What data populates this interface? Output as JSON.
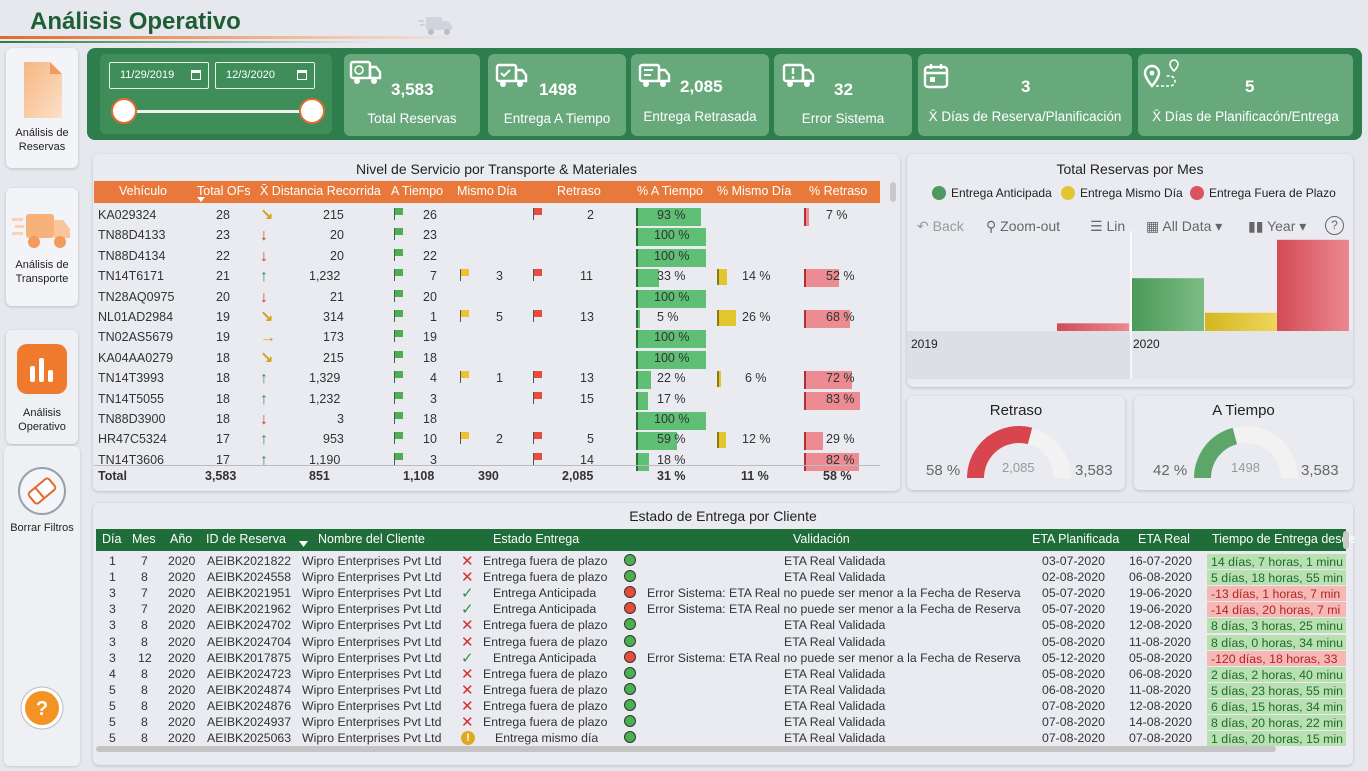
{
  "title": "Análisis Operativo",
  "nav": [
    {
      "label": "Análisis de Reservas"
    },
    {
      "label": "Análisis de Transporte"
    },
    {
      "label": "Análisis Operativo"
    },
    {
      "label": "Borrar Filtros"
    }
  ],
  "slicer": {
    "start": "11/29/2019",
    "end": "12/3/2020"
  },
  "kpis": {
    "total_reservas": {
      "value": "3,583",
      "label": "Total Reservas"
    },
    "a_tiempo": {
      "value": "1498",
      "label": "Entrega A Tiempo"
    },
    "retrasada": {
      "value": "2,085",
      "label": "Entrega Retrasada"
    },
    "error": {
      "value": "32",
      "label": "Error Sistema"
    },
    "dias_reserva": {
      "value": "3",
      "label": "X̄ Días de Reserva/Planificación"
    },
    "dias_entrega": {
      "value": "5",
      "label": "X̄ Días de Planificacón/Entrega"
    }
  },
  "service": {
    "title": "Nivel de Servicio por Transporte & Materiales",
    "headers": [
      "Vehículo",
      "Total OFs",
      "X̄ Distancia Recorrida",
      "A Tiempo",
      "Mismo Día",
      "Retraso",
      "% A Tiempo",
      "% Mismo Día",
      "% Retraso"
    ],
    "rows": [
      {
        "veh": "KA029324",
        "ofs": "28",
        "trend": "se",
        "dist": "215",
        "at": "26",
        "md": "",
        "re": "2",
        "pat": "93 %",
        "pat_v": 93,
        "pmd": "",
        "pmd_v": 0,
        "pre": "7 %",
        "pre_v": 7
      },
      {
        "veh": "TN88D4133",
        "ofs": "23",
        "trend": "down",
        "dist": "20",
        "at": "23",
        "md": "",
        "re": "",
        "pat": "100 %",
        "pat_v": 100,
        "pmd": "",
        "pmd_v": 0,
        "pre": "",
        "pre_v": 0
      },
      {
        "veh": "TN88D4134",
        "ofs": "22",
        "trend": "down",
        "dist": "20",
        "at": "22",
        "md": "",
        "re": "",
        "pat": "100 %",
        "pat_v": 100,
        "pmd": "",
        "pmd_v": 0,
        "pre": "",
        "pre_v": 0
      },
      {
        "veh": "TN14T6171",
        "ofs": "21",
        "trend": "up",
        "dist": "1,232",
        "at": "7",
        "md": "3",
        "re": "11",
        "pat": "33 %",
        "pat_v": 33,
        "pmd": "14 %",
        "pmd_v": 14,
        "pre": "52 %",
        "pre_v": 52
      },
      {
        "veh": "TN28AQ0975",
        "ofs": "20",
        "trend": "down",
        "dist": "21",
        "at": "20",
        "md": "",
        "re": "",
        "pat": "100 %",
        "pat_v": 100,
        "pmd": "",
        "pmd_v": 0,
        "pre": "",
        "pre_v": 0
      },
      {
        "veh": "NL01AD2984",
        "ofs": "19",
        "trend": "se",
        "dist": "314",
        "at": "1",
        "md": "5",
        "re": "13",
        "pat": "5 %",
        "pat_v": 5,
        "pmd": "26 %",
        "pmd_v": 26,
        "pre": "68 %",
        "pre_v": 68
      },
      {
        "veh": "TN02AS5679",
        "ofs": "19",
        "trend": "right",
        "dist": "173",
        "at": "19",
        "md": "",
        "re": "",
        "pat": "100 %",
        "pat_v": 100,
        "pmd": "",
        "pmd_v": 0,
        "pre": "",
        "pre_v": 0
      },
      {
        "veh": "KA04AA0279",
        "ofs": "18",
        "trend": "se",
        "dist": "215",
        "at": "18",
        "md": "",
        "re": "",
        "pat": "100 %",
        "pat_v": 100,
        "pmd": "",
        "pmd_v": 0,
        "pre": "",
        "pre_v": 0
      },
      {
        "veh": "TN14T3993",
        "ofs": "18",
        "trend": "up",
        "dist": "1,329",
        "at": "4",
        "md": "1",
        "re": "13",
        "pat": "22 %",
        "pat_v": 22,
        "pmd": "6 %",
        "pmd_v": 6,
        "pre": "72 %",
        "pre_v": 72
      },
      {
        "veh": "TN14T5055",
        "ofs": "18",
        "trend": "up",
        "dist": "1,232",
        "at": "3",
        "md": "",
        "re": "15",
        "pat": "17 %",
        "pat_v": 17,
        "pmd": "",
        "pmd_v": 0,
        "pre": "83 %",
        "pre_v": 83
      },
      {
        "veh": "TN88D3900",
        "ofs": "18",
        "trend": "down",
        "dist": "3",
        "at": "18",
        "md": "",
        "re": "",
        "pat": "100 %",
        "pat_v": 100,
        "pmd": "",
        "pmd_v": 0,
        "pre": "",
        "pre_v": 0
      },
      {
        "veh": "HR47C5324",
        "ofs": "17",
        "trend": "up",
        "dist": "953",
        "at": "10",
        "md": "2",
        "re": "5",
        "pat": "59 %",
        "pat_v": 59,
        "pmd": "12 %",
        "pmd_v": 12,
        "pre": "29 %",
        "pre_v": 29
      },
      {
        "veh": "TN14T3606",
        "ofs": "17",
        "trend": "up",
        "dist": "1,190",
        "at": "3",
        "md": "",
        "re": "14",
        "pat": "18 %",
        "pat_v": 18,
        "pmd": "",
        "pmd_v": 0,
        "pre": "82 %",
        "pre_v": 82
      }
    ],
    "total": {
      "label": "Total",
      "ofs": "3,583",
      "dist": "851",
      "at": "1,108",
      "md": "390",
      "re": "2,085",
      "pat": "31 %",
      "pmd": "11 %",
      "pre": "58 %"
    }
  },
  "monthly": {
    "title": "Total Reservas por Mes",
    "legend": [
      "Entrega Anticipada",
      "Entrega Mismo Día",
      "Entrega Fuera de Plazo"
    ],
    "toolbar": {
      "back": "Back",
      "zoom": "Zoom-out",
      "list": "Lin",
      "alldata": "All Data",
      "year": "Year",
      "help": "?"
    }
  },
  "chart_data": {
    "type": "bar",
    "categories": [
      "2019",
      "2020"
    ],
    "series": [
      {
        "name": "Entrega Anticipada",
        "values": [
          0,
          55
        ]
      },
      {
        "name": "Entrega Mismo Día",
        "values": [
          0,
          19
        ]
      },
      {
        "name": "Entrega Fuera de Plazo",
        "values": [
          8,
          95
        ]
      }
    ],
    "colors": [
      "#4e9a5e",
      "#e2c62f",
      "#d9545e"
    ]
  },
  "gauges": {
    "retraso": {
      "title": "Retraso",
      "pct": "58 %",
      "value": "2,085",
      "max": "3,583",
      "fraction": 0.582,
      "color": "#d9454f"
    },
    "a_tiempo": {
      "title": "A Tiempo",
      "pct": "42 %",
      "value": "1498",
      "max": "3,583",
      "fraction": 0.418,
      "color": "#5ca66a"
    }
  },
  "delivery": {
    "title": "Estado de Entrega por Cliente",
    "headers": [
      "Día",
      "Mes",
      "Año",
      "ID de Reserva",
      "Nombre del Cliente",
      "Estado Entrega",
      "Validación",
      "ETA Planificada",
      "ETA Real",
      "Tiempo de Entrega desde"
    ],
    "rows": [
      {
        "dia": "1",
        "mes": "7",
        "anio": "2020",
        "id": "AEIBK2021822",
        "cliente": "Wipro Enterprises Pvt Ltd",
        "status": "x",
        "estado": "Entrega fuera de plazo",
        "valid": "g",
        "validacion": "ETA Real Validada",
        "plan": "03-07-2020",
        "real": "16-07-2020",
        "tiempo": "14 días, 7 horas, 1 minu",
        "tipo": "pos"
      },
      {
        "dia": "1",
        "mes": "8",
        "anio": "2020",
        "id": "AEIBK2024558",
        "cliente": "Wipro Enterprises Pvt Ltd",
        "status": "x",
        "estado": "Entrega fuera de plazo",
        "valid": "g",
        "validacion": "ETA Real Validada",
        "plan": "02-08-2020",
        "real": "06-08-2020",
        "tiempo": "5 días, 18 horas, 55 min",
        "tipo": "pos"
      },
      {
        "dia": "3",
        "mes": "7",
        "anio": "2020",
        "id": "AEIBK2021951",
        "cliente": "Wipro Enterprises Pvt Ltd",
        "status": "check",
        "estado": "Entrega Anticipada",
        "valid": "r",
        "validacion": "Error Sistema: ETA Real no puede ser menor a la Fecha de Reserva",
        "plan": "05-07-2020",
        "real": "19-06-2020",
        "tiempo": "-13 días, 1 horas, 7 min",
        "tipo": "neg"
      },
      {
        "dia": "3",
        "mes": "7",
        "anio": "2020",
        "id": "AEIBK2021962",
        "cliente": "Wipro Enterprises Pvt Ltd",
        "status": "check",
        "estado": "Entrega Anticipada",
        "valid": "r",
        "validacion": "Error Sistema: ETA Real no puede ser menor a la Fecha de Reserva",
        "plan": "05-07-2020",
        "real": "19-06-2020",
        "tiempo": "-14 días, 20 horas, 7 mi",
        "tipo": "neg"
      },
      {
        "dia": "3",
        "mes": "8",
        "anio": "2020",
        "id": "AEIBK2024702",
        "cliente": "Wipro Enterprises Pvt Ltd",
        "status": "x",
        "estado": "Entrega fuera de plazo",
        "valid": "g",
        "validacion": "ETA Real Validada",
        "plan": "05-08-2020",
        "real": "12-08-2020",
        "tiempo": "8 días, 3 horas, 25 minu",
        "tipo": "pos"
      },
      {
        "dia": "3",
        "mes": "8",
        "anio": "2020",
        "id": "AEIBK2024704",
        "cliente": "Wipro Enterprises Pvt Ltd",
        "status": "x",
        "estado": "Entrega fuera de plazo",
        "valid": "g",
        "validacion": "ETA Real Validada",
        "plan": "05-08-2020",
        "real": "11-08-2020",
        "tiempo": "8 días, 0 horas, 34 minu",
        "tipo": "pos"
      },
      {
        "dia": "3",
        "mes": "12",
        "anio": "2020",
        "id": "AEIBK2017875",
        "cliente": "Wipro Enterprises Pvt Ltd",
        "status": "check",
        "estado": "Entrega Anticipada",
        "valid": "r",
        "validacion": "Error Sistema: ETA Real no puede ser menor a la Fecha de Reserva",
        "plan": "05-12-2020",
        "real": "05-08-2020",
        "tiempo": "-120 días, 18 horas, 33",
        "tipo": "neg"
      },
      {
        "dia": "4",
        "mes": "8",
        "anio": "2020",
        "id": "AEIBK2024723",
        "cliente": "Wipro Enterprises Pvt Ltd",
        "status": "x",
        "estado": "Entrega fuera de plazo",
        "valid": "g",
        "validacion": "ETA Real Validada",
        "plan": "05-08-2020",
        "real": "06-08-2020",
        "tiempo": "2 días, 2 horas, 40 minu",
        "tipo": "pos"
      },
      {
        "dia": "5",
        "mes": "8",
        "anio": "2020",
        "id": "AEIBK2024874",
        "cliente": "Wipro Enterprises Pvt Ltd",
        "status": "x",
        "estado": "Entrega fuera de plazo",
        "valid": "g",
        "validacion": "ETA Real Validada",
        "plan": "06-08-2020",
        "real": "11-08-2020",
        "tiempo": "5 días, 23 horas, 55 min",
        "tipo": "pos"
      },
      {
        "dia": "5",
        "mes": "8",
        "anio": "2020",
        "id": "AEIBK2024876",
        "cliente": "Wipro Enterprises Pvt Ltd",
        "status": "x",
        "estado": "Entrega fuera de plazo",
        "valid": "g",
        "validacion": "ETA Real Validada",
        "plan": "07-08-2020",
        "real": "12-08-2020",
        "tiempo": "6 días, 15 horas, 34 min",
        "tipo": "pos"
      },
      {
        "dia": "5",
        "mes": "8",
        "anio": "2020",
        "id": "AEIBK2024937",
        "cliente": "Wipro Enterprises Pvt Ltd",
        "status": "x",
        "estado": "Entrega fuera de plazo",
        "valid": "g",
        "validacion": "ETA Real Validada",
        "plan": "07-08-2020",
        "real": "14-08-2020",
        "tiempo": "8 días, 20 horas, 22 min",
        "tipo": "pos"
      },
      {
        "dia": "5",
        "mes": "8",
        "anio": "2020",
        "id": "AEIBK2025063",
        "cliente": "Wipro Enterprises Pvt Ltd",
        "status": "warn",
        "estado": "Entrega mismo día",
        "valid": "g",
        "validacion": "ETA Real Validada",
        "plan": "07-08-2020",
        "real": "07-08-2020",
        "tiempo": "1 días, 20 horas, 15 min",
        "tipo": "pos"
      }
    ]
  }
}
